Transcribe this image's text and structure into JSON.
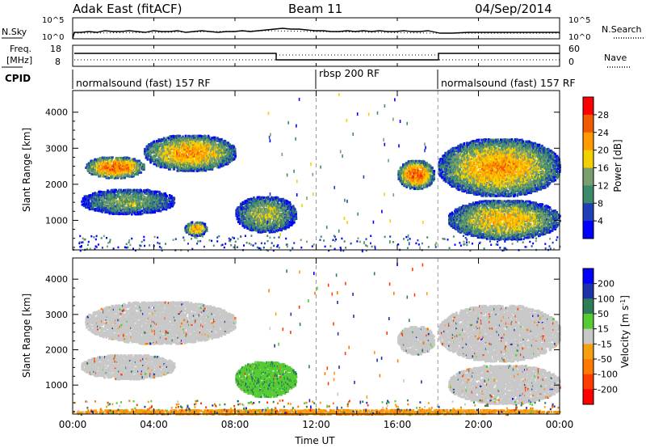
{
  "header": {
    "title": "Adak East (fitACF)",
    "beam": "Beam 11",
    "date": "04/Sep/2014"
  },
  "noise_panel": {
    "left_label": "N.Sky",
    "right_label": "N.Search",
    "left_ticks": [
      "10^5",
      "10^0"
    ],
    "right_ticks": [
      "10^5",
      "10^0"
    ]
  },
  "freq_panel": {
    "left_label_line1": "Freq.",
    "left_label_line2": "[MHz]",
    "right_label": "Nave",
    "left_ticks": [
      "18",
      "8"
    ],
    "right_ticks": [
      "60",
      "0"
    ]
  },
  "cpid": {
    "label": "CPID",
    "segments": [
      {
        "text": "normalsound (fast) 157 RF",
        "start_h": 0,
        "end_h": 12
      },
      {
        "text": "rbsp 200 RF",
        "start_h": 12,
        "end_h": 18
      },
      {
        "text": "normalsound (fast) 157 RF",
        "start_h": 18,
        "end_h": 24
      }
    ]
  },
  "chart_data": [
    {
      "type": "heatmap",
      "name": "power",
      "ylabel": "Slant Range [km]",
      "yticks": [
        "1000",
        "2000",
        "3000",
        "4000"
      ],
      "ylim": [
        180,
        4600
      ],
      "xlim": [
        0,
        24
      ],
      "colorbar": {
        "label": "Power [dB]",
        "ticks": [
          "28",
          "24",
          "20",
          "16",
          "12",
          "8",
          "4"
        ],
        "colors": [
          "#ff0000",
          "#f05a00",
          "#ff9a00",
          "#f5d000",
          "#7a9e6c",
          "#3d8a6b",
          "#1e3fb5",
          "#0000ff"
        ]
      },
      "echo_regions": [
        {
          "x0": 0.6,
          "x1": 3.5,
          "y0": 2200,
          "y1": 2800,
          "peak_db": 26
        },
        {
          "x0": 3.5,
          "x1": 8.0,
          "y0": 2400,
          "y1": 3400,
          "peak_db": 22
        },
        {
          "x0": 0.4,
          "x1": 5.0,
          "y0": 1200,
          "y1": 1900,
          "peak_db": 14
        },
        {
          "x0": 5.5,
          "x1": 6.6,
          "y0": 600,
          "y1": 1000,
          "peak_db": 22
        },
        {
          "x0": 8.0,
          "x1": 11.0,
          "y0": 700,
          "y1": 1700,
          "peak_db": 16
        },
        {
          "x0": 16.0,
          "x1": 17.8,
          "y0": 1900,
          "y1": 2700,
          "peak_db": 26
        },
        {
          "x0": 18.0,
          "x1": 24.0,
          "y0": 1700,
          "y1": 3300,
          "peak_db": 22
        },
        {
          "x0": 18.5,
          "x1": 24.0,
          "y0": 500,
          "y1": 1600,
          "peak_db": 20
        }
      ]
    },
    {
      "type": "heatmap",
      "name": "velocity",
      "ylabel": "Slant Range [km]",
      "xlabel": "Time UT",
      "xticks": [
        "00:00",
        "04:00",
        "08:00",
        "12:00",
        "16:00",
        "20:00",
        "00:00"
      ],
      "yticks": [
        "1000",
        "2000",
        "3000",
        "4000"
      ],
      "ylim": [
        180,
        4600
      ],
      "xlim": [
        0,
        24
      ],
      "colorbar": {
        "label": "Velocity [m s^-1]",
        "ticks": [
          "200",
          "100",
          "50",
          "15",
          "-15",
          "-50",
          "-100",
          "-200"
        ],
        "colors": [
          "#0000ff",
          "#1c34a8",
          "#2e7d57",
          "#55cc33",
          "#c8c8c8",
          "#f5a010",
          "#ff7a00",
          "#ff3c00",
          "#ff0000"
        ]
      },
      "echo_regions": [
        {
          "x0": 0.6,
          "x1": 8.0,
          "y0": 2200,
          "y1": 3400,
          "v": 0
        },
        {
          "x0": 0.4,
          "x1": 5.0,
          "y0": 1200,
          "y1": 1900,
          "v": 0
        },
        {
          "x0": 8.0,
          "x1": 11.0,
          "y0": 700,
          "y1": 1700,
          "v": 40
        },
        {
          "x0": 16.0,
          "x1": 17.8,
          "y0": 1900,
          "y1": 2700,
          "v": 0
        },
        {
          "x0": 18.0,
          "x1": 24.0,
          "y0": 1700,
          "y1": 3300,
          "v": 0
        },
        {
          "x0": 18.5,
          "x1": 24.0,
          "y0": 500,
          "y1": 1600,
          "v": 0
        },
        {
          "x0": 0.0,
          "x1": 24.0,
          "y0": 200,
          "y1": 350,
          "v": -40
        }
      ]
    }
  ]
}
